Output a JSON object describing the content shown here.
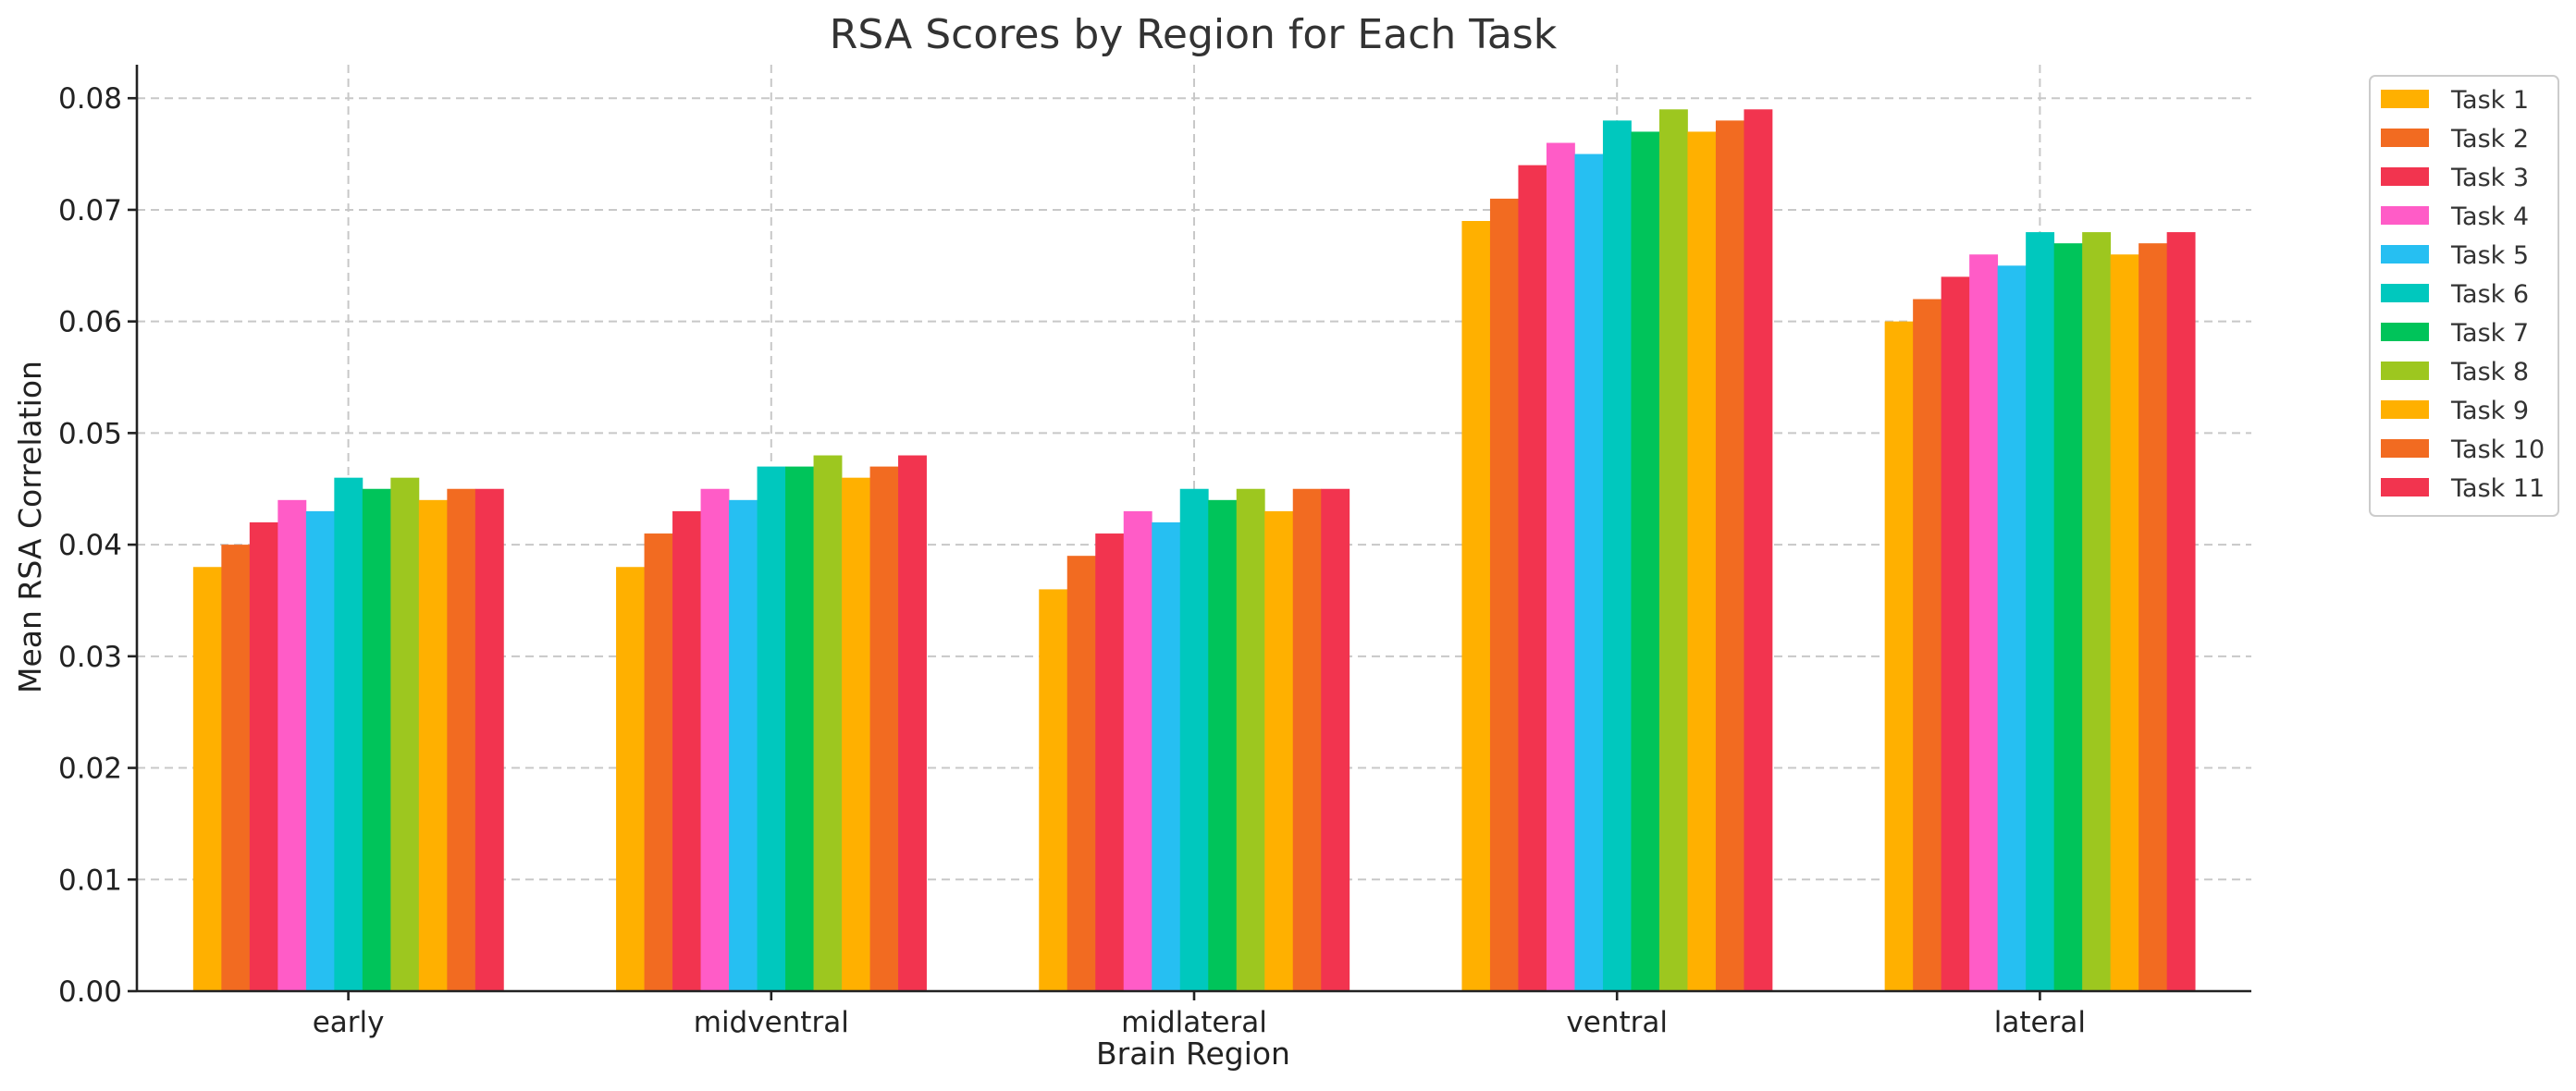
{
  "chart_data": {
    "type": "bar",
    "title": "RSA Scores by Region for Each Task",
    "xlabel": "Brain Region",
    "ylabel": "Mean RSA Correlation",
    "categories": [
      "early",
      "midventral",
      "midlateral",
      "ventral",
      "lateral"
    ],
    "ylim": [
      0,
      0.083
    ],
    "yticks": [
      0.0,
      0.01,
      0.02,
      0.03,
      0.04,
      0.05,
      0.06,
      0.07,
      0.08
    ],
    "ytick_labels": [
      "0.00",
      "0.01",
      "0.02",
      "0.03",
      "0.04",
      "0.05",
      "0.06",
      "0.07",
      "0.08"
    ],
    "grid": true,
    "legend_position": "outside-right-top",
    "series": [
      {
        "name": "Task 1",
        "color": "#FFB000",
        "values": [
          0.038,
          0.038,
          0.036,
          0.069,
          0.06
        ]
      },
      {
        "name": "Task 2",
        "color": "#F26B21",
        "values": [
          0.04,
          0.041,
          0.039,
          0.071,
          0.062
        ]
      },
      {
        "name": "Task 3",
        "color": "#F2344F",
        "values": [
          0.042,
          0.043,
          0.041,
          0.074,
          0.064
        ]
      },
      {
        "name": "Task 4",
        "color": "#FF5CC7",
        "values": [
          0.044,
          0.045,
          0.043,
          0.076,
          0.066
        ]
      },
      {
        "name": "Task 5",
        "color": "#26BFF2",
        "values": [
          0.043,
          0.044,
          0.042,
          0.075,
          0.065
        ]
      },
      {
        "name": "Task 6",
        "color": "#00C8BE",
        "values": [
          0.046,
          0.047,
          0.045,
          0.078,
          0.068
        ]
      },
      {
        "name": "Task 7",
        "color": "#00C45A",
        "values": [
          0.045,
          0.047,
          0.044,
          0.077,
          0.067
        ]
      },
      {
        "name": "Task 8",
        "color": "#9DC71F",
        "values": [
          0.046,
          0.048,
          0.045,
          0.079,
          0.068
        ]
      },
      {
        "name": "Task 9",
        "color": "#FFB000",
        "values": [
          0.044,
          0.046,
          0.043,
          0.077,
          0.066
        ]
      },
      {
        "name": "Task 10",
        "color": "#F26B21",
        "values": [
          0.045,
          0.047,
          0.045,
          0.078,
          0.067
        ]
      },
      {
        "name": "Task 11",
        "color": "#F2344F",
        "values": [
          0.045,
          0.048,
          0.045,
          0.079,
          0.068
        ]
      }
    ]
  }
}
